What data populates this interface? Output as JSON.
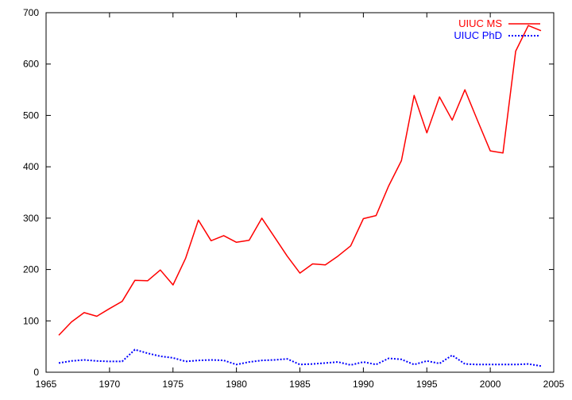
{
  "chart_data": {
    "type": "line",
    "xlim": [
      1965,
      2005
    ],
    "ylim": [
      0,
      700
    ],
    "x_ticks": [
      1965,
      1970,
      1975,
      1980,
      1985,
      1990,
      1995,
      2000,
      2005
    ],
    "y_ticks": [
      0,
      100,
      200,
      300,
      400,
      500,
      600,
      700
    ],
    "grid": false,
    "legend_position": "top-right",
    "x": [
      1966,
      1967,
      1968,
      1969,
      1970,
      1971,
      1972,
      1973,
      1974,
      1975,
      1976,
      1977,
      1978,
      1979,
      1980,
      1981,
      1982,
      1983,
      1984,
      1985,
      1986,
      1987,
      1988,
      1989,
      1990,
      1991,
      1992,
      1993,
      1994,
      1995,
      1996,
      1997,
      1998,
      1999,
      2000,
      2001,
      2002,
      2003,
      2004
    ],
    "series": [
      {
        "name": "UIUC MS",
        "color": "#ff0000",
        "style": "solid",
        "values": [
          72,
          98,
          116,
          109,
          124,
          138,
          179,
          178,
          199,
          170,
          222,
          296,
          256,
          266,
          253,
          257,
          300,
          263,
          226,
          193,
          211,
          209,
          226,
          246,
          299,
          305,
          363,
          412,
          539,
          466,
          536,
          491,
          550,
          490,
          431,
          427,
          625,
          675,
          665
        ]
      },
      {
        "name": "UIUC PhD",
        "color": "#0000ff",
        "style": "dotted",
        "values": [
          18,
          22,
          24,
          22,
          21,
          21,
          44,
          37,
          31,
          28,
          21,
          23,
          24,
          23,
          15,
          20,
          23,
          24,
          26,
          15,
          16,
          18,
          20,
          14,
          20,
          15,
          27,
          25,
          15,
          22,
          17,
          33,
          16,
          15,
          15,
          15,
          15,
          16,
          12
        ]
      }
    ]
  }
}
